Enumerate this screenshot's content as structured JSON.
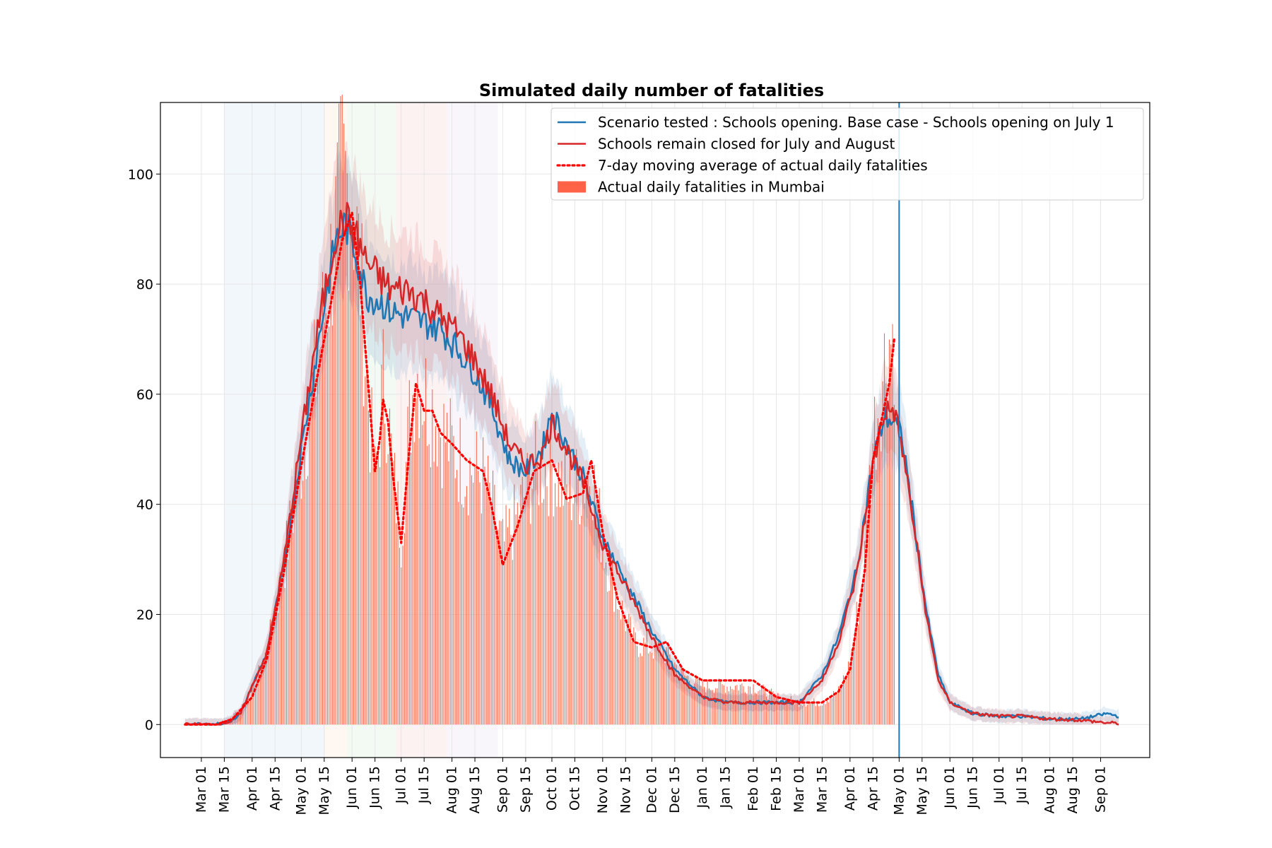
{
  "chart_data": {
    "type": "line",
    "title": "Simulated daily number of fatalities",
    "xlabel": "",
    "ylabel": "",
    "ylim": [
      -6,
      113
    ],
    "grid": true,
    "legend_position": "top-right",
    "x_tick_labels": [
      "Mar 01",
      "Mar 15",
      "Apr 01",
      "Apr 15",
      "May 01",
      "May 15",
      "Jun 01",
      "Jun 15",
      "Jul 01",
      "Jul 15",
      "Aug 01",
      "Aug 15",
      "Sep 01",
      "Sep 15",
      "Oct 01",
      "Oct 15",
      "Nov 01",
      "Nov 15",
      "Dec 01",
      "Dec 15",
      "Jan 01",
      "Jan 15",
      "Feb 01",
      "Feb 15",
      "Mar 01",
      "Mar 15",
      "Apr 01",
      "Apr 15",
      "May 01",
      "May 15",
      "Jun 01",
      "Jun 15",
      "Jul 01",
      "Jul 15",
      "Aug 01",
      "Aug 15",
      "Sep 01"
    ],
    "x_tick_dates": [
      "2020-03-01",
      "2020-03-15",
      "2020-04-01",
      "2020-04-15",
      "2020-05-01",
      "2020-05-15",
      "2020-06-01",
      "2020-06-15",
      "2020-07-01",
      "2020-07-15",
      "2020-08-01",
      "2020-08-15",
      "2020-09-01",
      "2020-09-15",
      "2020-10-01",
      "2020-10-15",
      "2020-11-01",
      "2020-11-15",
      "2020-12-01",
      "2020-12-15",
      "2021-01-01",
      "2021-01-15",
      "2021-02-01",
      "2021-02-15",
      "2021-03-01",
      "2021-03-15",
      "2021-04-01",
      "2021-04-15",
      "2021-05-01",
      "2021-05-15",
      "2021-06-01",
      "2021-06-15",
      "2021-07-01",
      "2021-07-15",
      "2021-08-01",
      "2021-08-15",
      "2021-09-01"
    ],
    "y_ticks": [
      0,
      20,
      40,
      60,
      80,
      100
    ],
    "y_tick_labels": [
      "0",
      "20",
      "40",
      "60",
      "80",
      "100"
    ],
    "vertical_line_date": "2021-05-01",
    "shaded_periods": [
      {
        "start": "2020-03-15",
        "end": "2020-05-15",
        "color": "#1f77b4"
      },
      {
        "start": "2020-05-15",
        "end": "2020-05-29",
        "color": "#ff7f0e"
      },
      {
        "start": "2020-05-29",
        "end": "2020-06-28",
        "color": "#2ca02c"
      },
      {
        "start": "2020-06-28",
        "end": "2020-07-29",
        "color": "#d62728"
      },
      {
        "start": "2020-07-29",
        "end": "2020-08-29",
        "color": "#9467bd"
      }
    ],
    "series": [
      {
        "name": "Scenario tested : Schools opening. Base case - Schools opening on July 1",
        "color": "#1f77b4",
        "style": "solid",
        "x": [
          "2020-02-20",
          "2020-03-10",
          "2020-03-18",
          "2020-03-25",
          "2020-04-01",
          "2020-04-10",
          "2020-04-20",
          "2020-04-30",
          "2020-05-08",
          "2020-05-15",
          "2020-05-22",
          "2020-05-28",
          "2020-06-03",
          "2020-06-10",
          "2020-06-18",
          "2020-06-25",
          "2020-07-05",
          "2020-07-15",
          "2020-07-25",
          "2020-08-05",
          "2020-08-15",
          "2020-08-25",
          "2020-09-05",
          "2020-09-15",
          "2020-09-25",
          "2020-10-01",
          "2020-10-10",
          "2020-10-20",
          "2020-11-01",
          "2020-11-15",
          "2020-12-01",
          "2020-12-15",
          "2021-01-01",
          "2021-01-15",
          "2021-02-01",
          "2021-02-15",
          "2021-03-01",
          "2021-03-15",
          "2021-03-25",
          "2021-04-05",
          "2021-04-15",
          "2021-04-22",
          "2021-04-28",
          "2021-05-03",
          "2021-05-10",
          "2021-05-18",
          "2021-05-25",
          "2021-06-01",
          "2021-06-15",
          "2021-07-01",
          "2021-07-15",
          "2021-08-01",
          "2021-08-20",
          "2021-09-05",
          "2021-09-12"
        ],
        "y": [
          0,
          0,
          0.5,
          2,
          7,
          13,
          28,
          48,
          63,
          76,
          88,
          91,
          86,
          78,
          77,
          75,
          74,
          73,
          72,
          68,
          64,
          58,
          48,
          46,
          50,
          57,
          51,
          45,
          34,
          26,
          17,
          10,
          5,
          4,
          4,
          4,
          4,
          9,
          16,
          28,
          48,
          56,
          55,
          52,
          37,
          20,
          9,
          4,
          2,
          1.5,
          1.5,
          1,
          1,
          2,
          1.5
        ]
      },
      {
        "name": "Schools remain closed for July and August",
        "color": "#d62728",
        "style": "solid",
        "x": [
          "2020-02-20",
          "2020-03-10",
          "2020-03-18",
          "2020-03-25",
          "2020-04-01",
          "2020-04-10",
          "2020-04-20",
          "2020-04-30",
          "2020-05-08",
          "2020-05-15",
          "2020-05-22",
          "2020-05-28",
          "2020-06-03",
          "2020-06-10",
          "2020-06-18",
          "2020-06-25",
          "2020-07-05",
          "2020-07-15",
          "2020-07-25",
          "2020-08-05",
          "2020-08-15",
          "2020-08-25",
          "2020-09-05",
          "2020-09-15",
          "2020-09-25",
          "2020-10-01",
          "2020-10-10",
          "2020-10-20",
          "2020-11-01",
          "2020-11-15",
          "2020-12-01",
          "2020-12-15",
          "2021-01-01",
          "2021-01-15",
          "2021-02-01",
          "2021-02-15",
          "2021-03-01",
          "2021-03-15",
          "2021-03-25",
          "2021-04-05",
          "2021-04-15",
          "2021-04-22",
          "2021-04-28",
          "2021-05-03",
          "2021-05-10",
          "2021-05-18",
          "2021-05-25",
          "2021-06-01",
          "2021-06-15",
          "2021-07-01",
          "2021-07-15",
          "2021-08-01",
          "2021-08-20",
          "2021-09-05",
          "2021-09-12"
        ],
        "y": [
          0,
          0,
          0.5,
          2,
          7,
          13,
          29,
          50,
          66,
          78,
          89,
          92,
          89,
          84,
          81,
          79,
          79,
          77,
          74,
          71,
          66,
          60,
          51,
          47,
          49,
          55,
          50,
          44,
          33,
          25,
          16,
          9,
          5,
          4,
          4,
          4,
          4,
          8,
          15,
          27,
          47,
          57,
          57,
          50,
          36,
          19,
          8,
          4,
          2,
          1.5,
          1.5,
          1,
          0.8,
          0.3,
          0.2
        ]
      },
      {
        "name": "7-day moving average of actual daily fatalities",
        "color": "#ff0000",
        "style": "dotted",
        "x": [
          "2020-02-20",
          "2020-03-10",
          "2020-03-20",
          "2020-04-01",
          "2020-04-10",
          "2020-04-20",
          "2020-05-01",
          "2020-05-10",
          "2020-05-20",
          "2020-05-26",
          "2020-06-01",
          "2020-06-06",
          "2020-06-10",
          "2020-06-15",
          "2020-06-18",
          "2020-06-20",
          "2020-06-23",
          "2020-06-26",
          "2020-07-01",
          "2020-07-06",
          "2020-07-10",
          "2020-07-15",
          "2020-07-20",
          "2020-07-25",
          "2020-08-01",
          "2020-08-10",
          "2020-08-20",
          "2020-08-25",
          "2020-09-01",
          "2020-09-10",
          "2020-09-20",
          "2020-10-01",
          "2020-10-10",
          "2020-10-20",
          "2020-10-25",
          "2020-11-01",
          "2020-11-10",
          "2020-11-20",
          "2020-12-01",
          "2020-12-10",
          "2020-12-20",
          "2021-01-01",
          "2021-01-15",
          "2021-02-01",
          "2021-02-15",
          "2021-03-01",
          "2021-03-15",
          "2021-03-25",
          "2021-04-01",
          "2021-04-10",
          "2021-04-15",
          "2021-04-20",
          "2021-04-25",
          "2021-04-28"
        ],
        "y": [
          0,
          0,
          1,
          5,
          12,
          27,
          47,
          62,
          78,
          88,
          93,
          80,
          65,
          46,
          52,
          59,
          55,
          45,
          33,
          50,
          62,
          57,
          57,
          53,
          51,
          48,
          46,
          40,
          29,
          36,
          46,
          48,
          41,
          42,
          48,
          35,
          23,
          15,
          14,
          15,
          10,
          8,
          8,
          8,
          5,
          4,
          4,
          6,
          10,
          28,
          48,
          55,
          62,
          70
        ]
      }
    ],
    "bars": {
      "name": "Actual daily fatalities in Mumbai",
      "color": "#ff6347",
      "x": [
        "2020-03-10",
        "2020-03-18",
        "2020-03-25",
        "2020-04-01",
        "2020-04-10",
        "2020-04-20",
        "2020-05-01",
        "2020-05-10",
        "2020-05-20",
        "2020-05-26",
        "2020-06-01",
        "2020-06-06",
        "2020-06-10",
        "2020-06-15",
        "2020-06-18",
        "2020-06-20",
        "2020-06-23",
        "2020-06-26",
        "2020-07-01",
        "2020-07-06",
        "2020-07-10",
        "2020-07-15",
        "2020-07-20",
        "2020-07-25",
        "2020-08-01",
        "2020-08-10",
        "2020-08-20",
        "2020-08-25",
        "2020-09-01",
        "2020-09-10",
        "2020-09-20",
        "2020-10-01",
        "2020-10-10",
        "2020-10-20",
        "2020-10-25",
        "2020-11-01",
        "2020-11-10",
        "2020-11-20",
        "2020-12-01",
        "2020-12-10",
        "2020-12-20",
        "2021-01-01",
        "2021-01-15",
        "2021-02-01",
        "2021-02-15",
        "2021-03-01",
        "2021-03-15",
        "2021-03-25",
        "2021-04-01",
        "2021-04-10",
        "2021-04-15",
        "2021-04-20",
        "2021-04-25",
        "2021-04-28"
      ],
      "y": [
        0,
        1,
        3,
        6,
        13,
        28,
        48,
        64,
        85,
        100,
        96,
        82,
        62,
        44,
        55,
        62,
        57,
        45,
        35,
        55,
        65,
        60,
        58,
        54,
        50,
        47,
        45,
        40,
        32,
        38,
        46,
        47,
        42,
        44,
        47,
        33,
        23,
        15,
        14,
        13,
        9,
        7,
        7,
        7,
        5,
        4,
        4,
        6,
        11,
        30,
        52,
        62,
        70,
        72
      ]
    },
    "legend": [
      "Scenario tested : Schools opening. Base case - Schools opening on July 1",
      "Schools remain closed for July and August",
      "7-day moving average of actual daily fatalities",
      "Actual daily fatalities in Mumbai"
    ]
  }
}
